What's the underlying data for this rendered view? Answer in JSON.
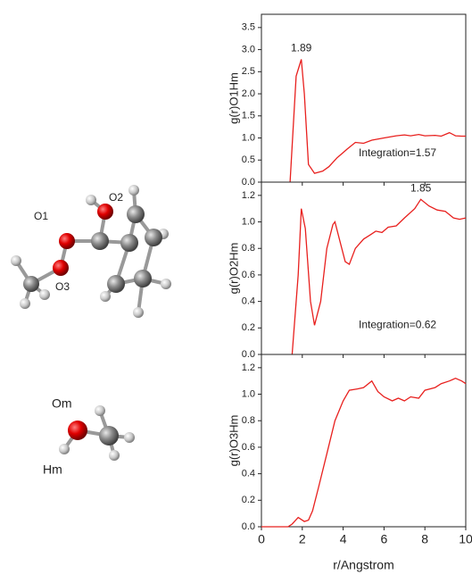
{
  "chart_data": [
    {
      "type": "line",
      "ylabel": "g(r)O1Hm",
      "annotations": [
        "1.89",
        "Integration=1.57"
      ],
      "xlim": [
        0,
        10
      ],
      "xticks": [
        0,
        2,
        4,
        6,
        8,
        10
      ],
      "ylim": [
        0,
        3.8
      ],
      "yticks": [
        {
          "value": 0,
          "label": "0.0"
        },
        0.5,
        {
          "value": 1,
          "label": "1.0"
        },
        1.5,
        {
          "value": 2,
          "label": "2.0"
        },
        2.5,
        {
          "value": 3,
          "label": "3.0"
        },
        3.5
      ],
      "series": [
        {
          "color": "#e8201e",
          "x": [
            1.4,
            1.7,
            1.95,
            2.1,
            2.3,
            2.6,
            3.0,
            3.3,
            3.7,
            4.2,
            4.6,
            5.0,
            5.4,
            6.0,
            6.6,
            7.0,
            7.3,
            7.7,
            8.0,
            8.5,
            8.8,
            9.2,
            9.5,
            9.8,
            10.0
          ],
          "values": [
            0,
            2.4,
            2.78,
            2.0,
            0.4,
            0.2,
            0.25,
            0.35,
            0.55,
            0.75,
            0.9,
            0.88,
            0.95,
            1.0,
            1.05,
            1.07,
            1.05,
            1.08,
            1.05,
            1.06,
            1.04,
            1.12,
            1.05,
            1.04,
            1.04
          ]
        }
      ]
    },
    {
      "type": "line",
      "ylabel": "g(r)O2Hm",
      "annotations": [
        "1.85",
        "Integration=0.62"
      ],
      "xlim": [
        0,
        10
      ],
      "xticks": [
        0,
        2,
        4,
        6,
        8,
        10
      ],
      "ylim": [
        0,
        1.3
      ],
      "yticks": [
        {
          "value": 0,
          "label": "0.0"
        },
        0.2,
        0.4,
        0.6,
        0.8,
        {
          "value": 1,
          "label": "1.0"
        },
        1.2
      ],
      "series": [
        {
          "color": "#e8201e",
          "x": [
            1.5,
            1.8,
            1.95,
            2.15,
            2.4,
            2.6,
            2.9,
            3.2,
            3.5,
            3.6,
            3.9,
            4.1,
            4.3,
            4.6,
            5.0,
            5.3,
            5.6,
            5.9,
            6.2,
            6.6,
            7.0,
            7.5,
            7.8,
            8.2,
            8.6,
            9.0,
            9.4,
            9.7,
            10.0
          ],
          "values": [
            0,
            0.6,
            1.1,
            0.95,
            0.4,
            0.22,
            0.4,
            0.8,
            0.98,
            1.0,
            0.82,
            0.7,
            0.68,
            0.8,
            0.87,
            0.9,
            0.93,
            0.92,
            0.96,
            0.97,
            1.03,
            1.1,
            1.17,
            1.12,
            1.09,
            1.08,
            1.03,
            1.02,
            1.03
          ]
        }
      ]
    },
    {
      "type": "line",
      "ylabel": "g(r)O3Hm",
      "xlabel": "r/Angstrom",
      "xlim": [
        0,
        10
      ],
      "xticks": [
        0,
        2,
        4,
        6,
        8,
        10
      ],
      "ylim": [
        0,
        1.3
      ],
      "yticks": [
        {
          "value": 0,
          "label": "0.0"
        },
        0.2,
        0.4,
        0.6,
        0.8,
        {
          "value": 1,
          "label": "1.0"
        },
        1.2
      ],
      "series": [
        {
          "color": "#e8201e",
          "x": [
            0,
            1.3,
            1.5,
            1.8,
            2.1,
            2.3,
            2.5,
            2.8,
            3.2,
            3.6,
            4.0,
            4.3,
            4.7,
            5.0,
            5.4,
            5.7,
            6.0,
            6.4,
            6.7,
            7.0,
            7.3,
            7.7,
            8.0,
            8.5,
            8.8,
            9.2,
            9.5,
            9.8,
            10.0
          ],
          "values": [
            0,
            0,
            0.02,
            0.07,
            0.04,
            0.05,
            0.12,
            0.3,
            0.55,
            0.8,
            0.95,
            1.03,
            1.04,
            1.05,
            1.1,
            1.02,
            0.98,
            0.95,
            0.97,
            0.95,
            0.98,
            0.97,
            1.03,
            1.05,
            1.08,
            1.1,
            1.12,
            1.1,
            1.08
          ]
        }
      ]
    }
  ],
  "molecules": {
    "acid_labels": [
      "O1",
      "O2",
      "O3"
    ],
    "methanol_labels": [
      "Om",
      "Hm"
    ]
  }
}
